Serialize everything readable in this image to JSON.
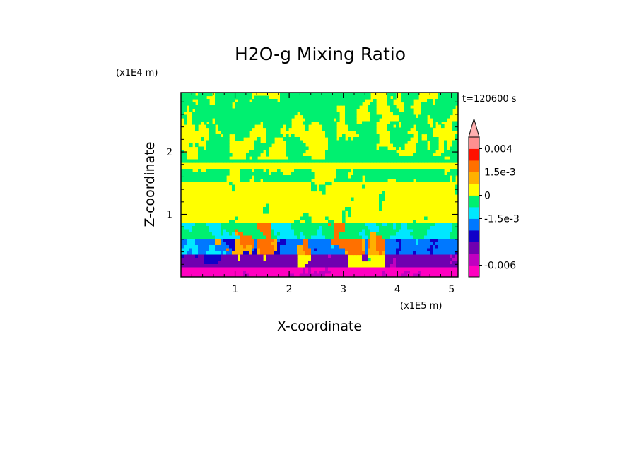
{
  "chart_data": {
    "type": "heatmap",
    "title": "H2O-g Mixing Ratio",
    "xlabel": "X-coordinate",
    "ylabel": "Z-coordinate",
    "x_scale_label": "(x1E5 m)",
    "y_scale_label": "(x1E4 m)",
    "time_label": "t=120600 s",
    "xlim": [
      0,
      5.12
    ],
    "ylim": [
      0,
      2.95
    ],
    "x_ticks": [
      "1",
      "2",
      "3",
      "4",
      "5"
    ],
    "x_tick_values": [
      1,
      2,
      3,
      4,
      5
    ],
    "y_ticks": [
      "1",
      "2"
    ],
    "y_tick_values": [
      1,
      2
    ],
    "colorbar": {
      "levels": [
        {
          "color": "#ff00c0"
        },
        {
          "color": "#c000c0"
        },
        {
          "color": "#7000b0"
        },
        {
          "color": "#1000c8"
        },
        {
          "color": "#0078ff"
        },
        {
          "color": "#00e8ff"
        },
        {
          "color": "#00f070"
        },
        {
          "color": "#ffff00"
        },
        {
          "color": "#ffb000"
        },
        {
          "color": "#ff7000"
        },
        {
          "color": "#ff1000"
        },
        {
          "color": "#ff9090"
        }
      ],
      "over_color": "#ffb0b0",
      "labels": [
        {
          "text": "0.004",
          "level_boundary": 11
        },
        {
          "text": "1.5e-3",
          "level_boundary": 9
        },
        {
          "text": "0",
          "level_boundary": 7
        },
        {
          "text": "-1.5e-3",
          "level_boundary": 5
        },
        {
          "text": "-0.006",
          "level_boundary": 1
        }
      ]
    }
  }
}
